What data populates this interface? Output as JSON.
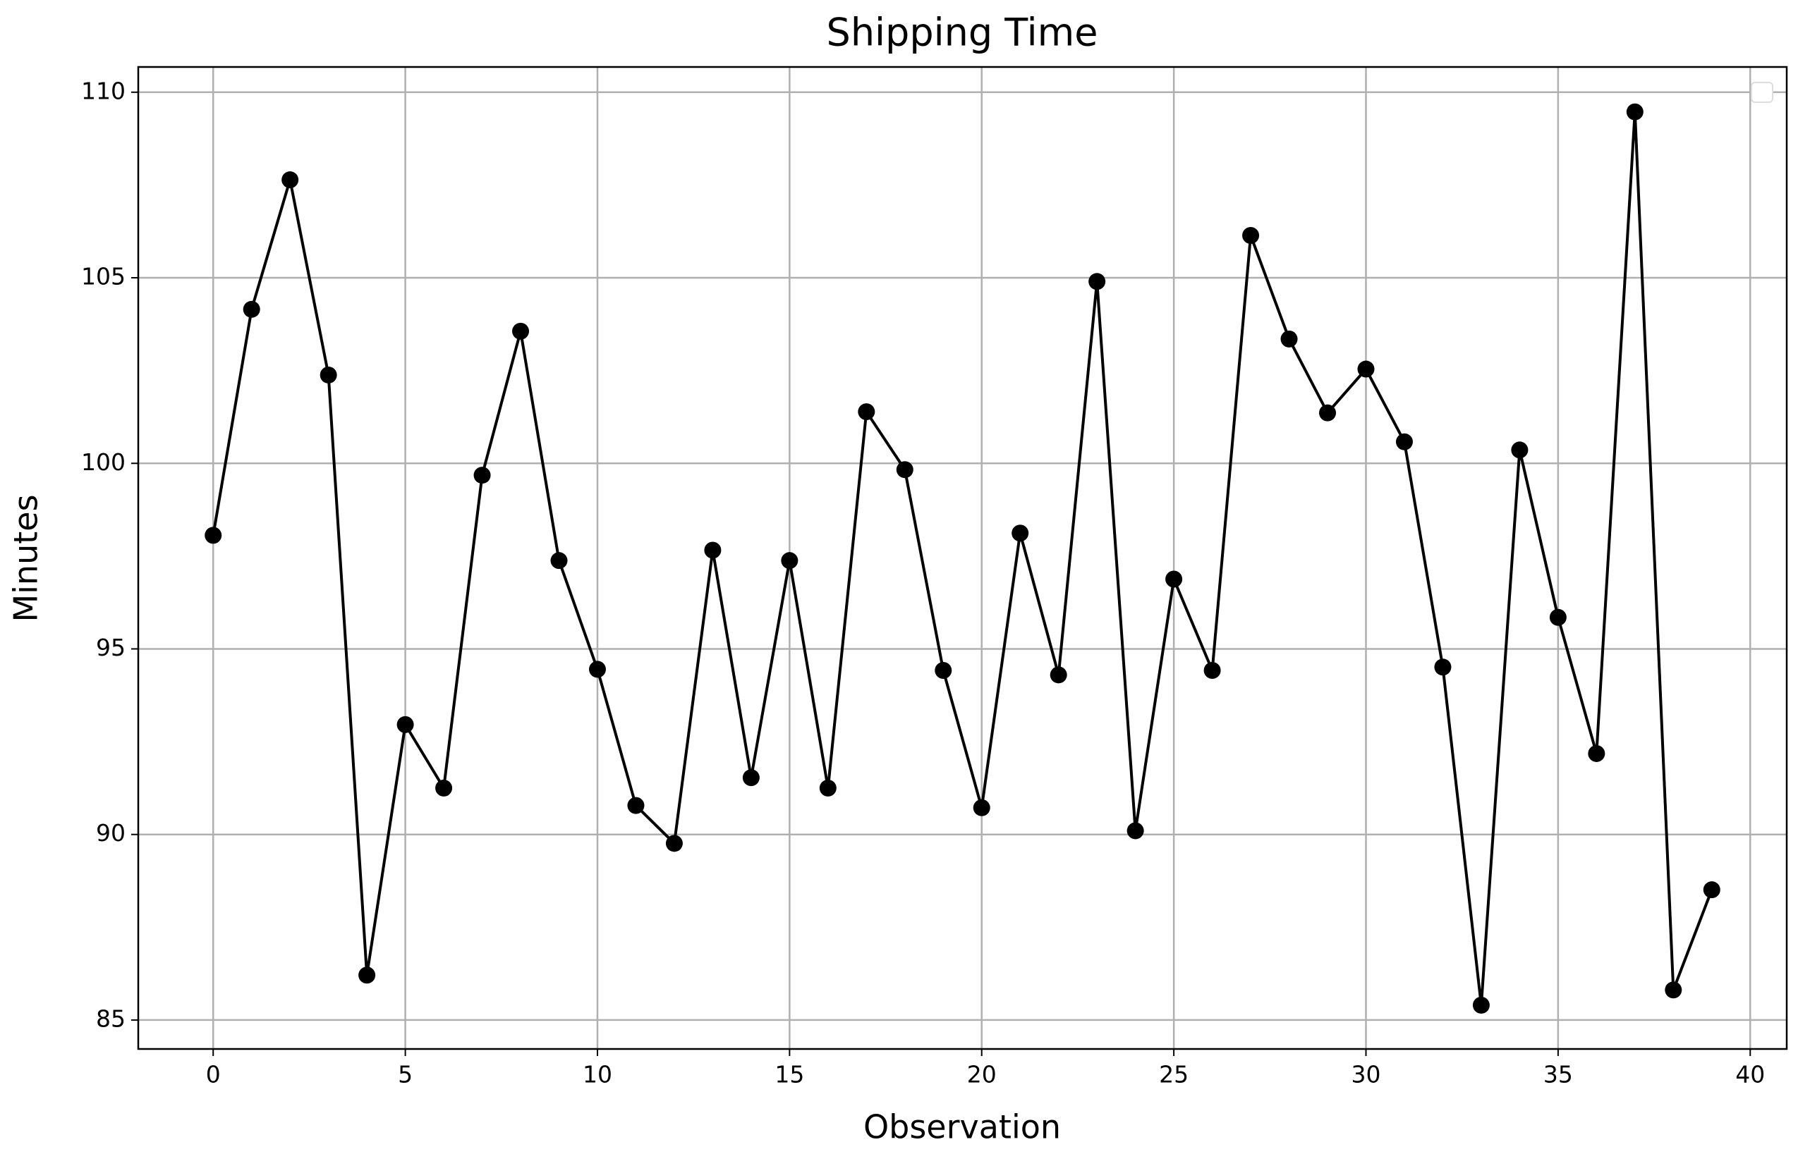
{
  "chart_data": {
    "type": "line",
    "title": "Shipping Time",
    "x_label": "Observation",
    "y_label": "Minutes",
    "x": [
      0,
      1,
      2,
      3,
      4,
      5,
      6,
      7,
      8,
      9,
      10,
      11,
      12,
      13,
      14,
      15,
      16,
      17,
      18,
      19,
      20,
      21,
      22,
      23,
      24,
      25,
      26,
      27,
      28,
      29,
      30,
      31,
      32,
      33,
      34,
      35,
      36,
      37,
      38,
      39
    ],
    "series": [
      {
        "color": "#000000",
        "values": [
          98.06,
          104.15,
          107.64,
          102.38,
          86.21,
          92.96,
          91.25,
          99.68,
          103.56,
          97.38,
          94.45,
          90.78,
          89.76,
          97.66,
          91.53,
          97.38,
          91.25,
          101.39,
          99.83,
          94.42,
          90.72,
          98.12,
          94.3,
          104.9,
          90.1,
          96.88,
          94.42,
          106.14,
          103.35,
          101.36,
          102.54,
          100.58,
          94.51,
          85.4,
          100.36,
          95.85,
          92.18,
          109.47,
          85.81,
          88.51
        ]
      }
    ],
    "xlim": [
      -1.95,
      40.95
    ],
    "xticks": [
      0,
      5,
      10,
      15,
      20,
      25,
      30,
      35,
      40
    ],
    "ylim": [
      84.22,
      110.68
    ],
    "yticks": [
      85,
      90,
      95,
      100,
      105,
      110
    ],
    "grid": true
  }
}
